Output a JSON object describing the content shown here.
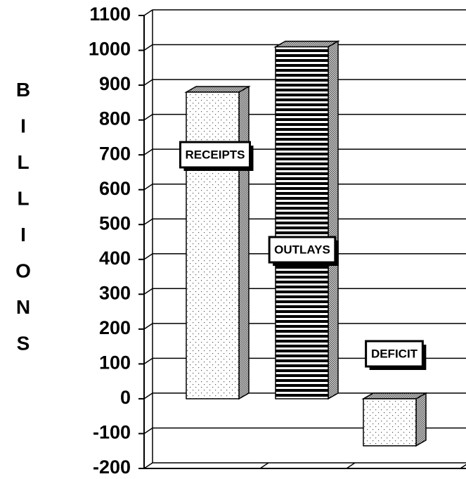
{
  "chart_data": {
    "type": "bar3d",
    "y_label": "BILLIONS",
    "categories": [
      "RECEIPTS",
      "OUTLAYS",
      "DEFICIT"
    ],
    "values": [
      880,
      1010,
      -135
    ],
    "ylim": [
      -200,
      1100
    ],
    "yticks": [
      -200,
      -100,
      0,
      100,
      200,
      300,
      400,
      500,
      600,
      700,
      800,
      900,
      1000,
      1100
    ],
    "grid": true
  }
}
